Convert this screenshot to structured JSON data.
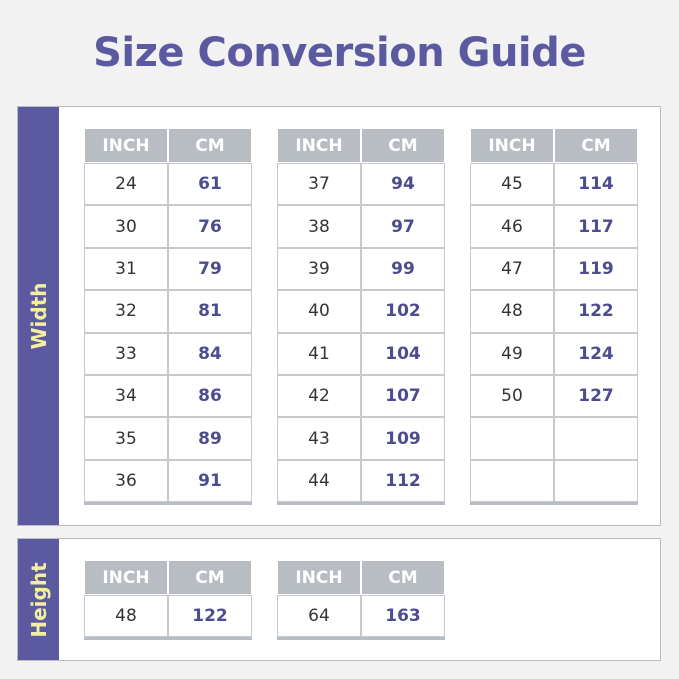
{
  "title": "Size Conversion Guide",
  "sections": [
    {
      "label": "Width",
      "tables": [
        {
          "headers": [
            "INCH",
            "CM"
          ],
          "rows": [
            [
              24,
              61
            ],
            [
              30,
              76
            ],
            [
              31,
              79
            ],
            [
              32,
              81
            ],
            [
              33,
              84
            ],
            [
              34,
              86
            ],
            [
              35,
              89
            ],
            [
              36,
              91
            ]
          ]
        },
        {
          "headers": [
            "INCH",
            "CM"
          ],
          "rows": [
            [
              37,
              94
            ],
            [
              38,
              97
            ],
            [
              39,
              99
            ],
            [
              40,
              102
            ],
            [
              41,
              104
            ],
            [
              42,
              107
            ],
            [
              43,
              109
            ],
            [
              44,
              112
            ]
          ]
        },
        {
          "headers": [
            "INCH",
            "CM"
          ],
          "rows": [
            [
              45,
              114
            ],
            [
              46,
              117
            ],
            [
              47,
              119
            ],
            [
              48,
              122
            ],
            [
              49,
              124
            ],
            [
              50,
              127
            ]
          ]
        }
      ]
    },
    {
      "label": "Height",
      "tables": [
        {
          "headers": [
            "INCH",
            "CM"
          ],
          "rows": [
            [
              48,
              122
            ]
          ]
        },
        {
          "headers": [
            "INCH",
            "CM"
          ],
          "rows": [
            [
              64,
              163
            ]
          ]
        }
      ]
    }
  ]
}
